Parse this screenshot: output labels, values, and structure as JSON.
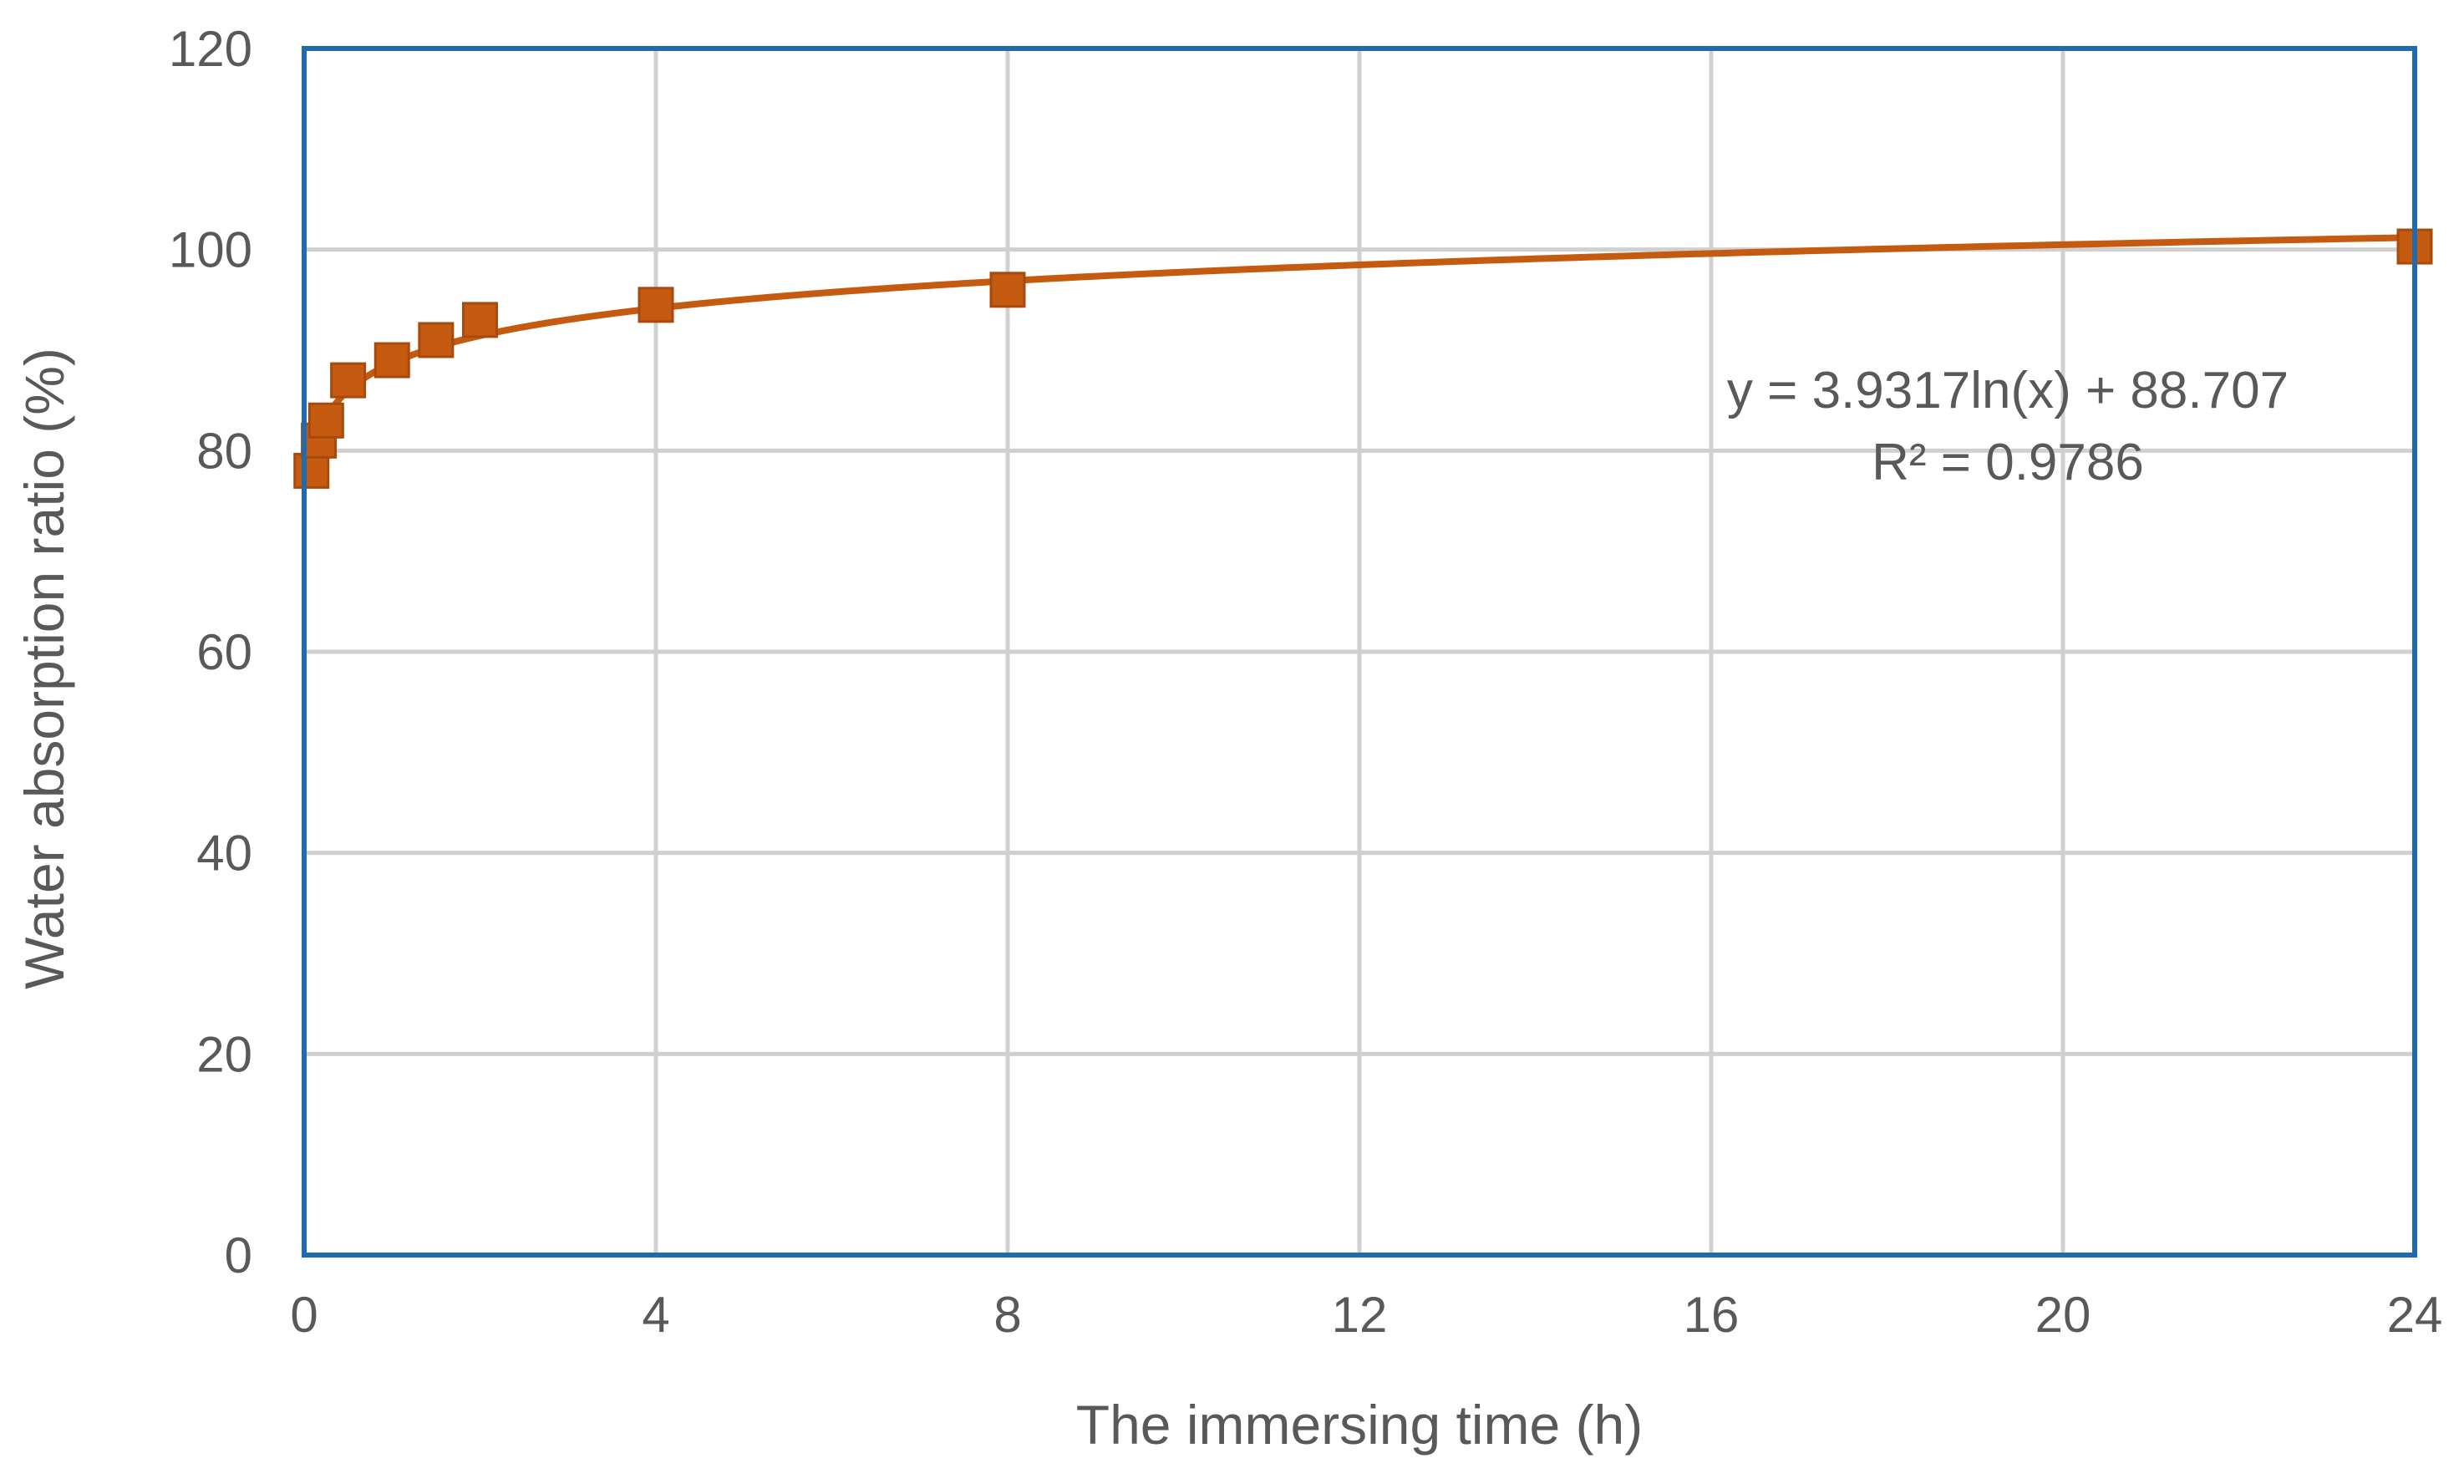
{
  "chart_data": {
    "type": "scatter",
    "xlabel": "The immersing time (h)",
    "ylabel": "Water absorption ratio (%)",
    "xlim": [
      0,
      24
    ],
    "ylim": [
      0,
      120
    ],
    "x_ticks": [
      0,
      4,
      8,
      12,
      16,
      20,
      24
    ],
    "y_ticks": [
      0,
      20,
      40,
      60,
      80,
      100,
      120
    ],
    "grid": true,
    "legend": "none",
    "series": [
      {
        "x": [
          0.083,
          0.167,
          0.25,
          0.5,
          1,
          1.5,
          2,
          4,
          8,
          24
        ],
        "y": [
          78,
          81,
          83,
          87,
          89,
          91,
          93,
          94.5,
          96,
          100.3
        ],
        "marker": "square",
        "color": "#C55A11"
      }
    ],
    "trendline": {
      "type": "logarithmic",
      "a": 3.9317,
      "b": 88.707,
      "color": "#C55A11"
    },
    "annotations": [
      {
        "text": "y = 3.9317ln(x) + 88.707"
      },
      {
        "text": "R² = 0.9786"
      }
    ],
    "colors": {
      "plot_border": "#1F6BB0",
      "grid": "#D0D0D0",
      "text": "#595959"
    }
  }
}
